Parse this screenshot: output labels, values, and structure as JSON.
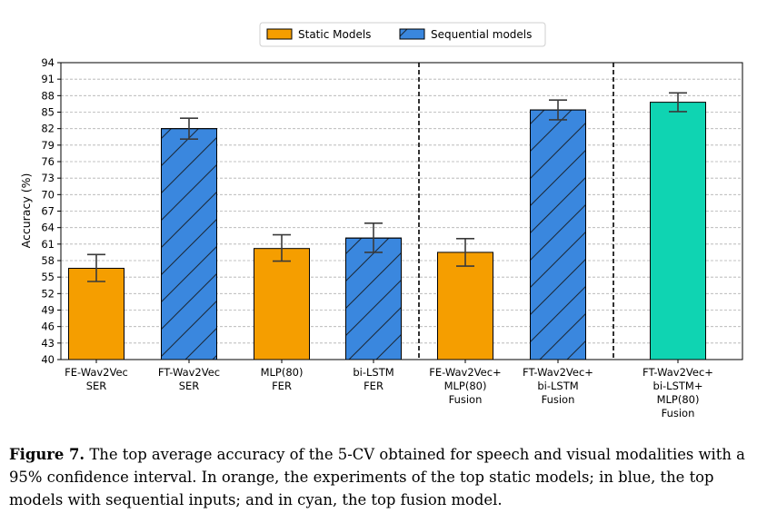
{
  "chart_data": {
    "type": "bar",
    "title": "",
    "xlabel": "",
    "ylabel": "Accuracy (%)",
    "ylim": [
      40,
      94
    ],
    "yticks": [
      40,
      43,
      46,
      49,
      52,
      55,
      58,
      61,
      64,
      67,
      70,
      73,
      76,
      79,
      82,
      85,
      88,
      91,
      94
    ],
    "grid": true,
    "legend_position": "top-center",
    "legend": [
      {
        "name": "Static Models",
        "color": "#f59e00",
        "hatch": false
      },
      {
        "name": "Sequential models",
        "color": "#3a87de",
        "hatch": true
      }
    ],
    "categories": [
      {
        "lines": [
          "FE-Wav2Vec",
          "SER"
        ],
        "value": 56.6,
        "err_low": 54.2,
        "err_high": 59.1,
        "group": "static",
        "color": "#f59e00"
      },
      {
        "lines": [
          "FT-Wav2Vec",
          "SER"
        ],
        "value": 82.0,
        "err_low": 80.1,
        "err_high": 83.9,
        "group": "sequential",
        "color": "#3a87de"
      },
      {
        "lines": [
          "MLP(80)",
          "FER"
        ],
        "value": 60.2,
        "err_low": 57.9,
        "err_high": 62.7,
        "group": "static",
        "color": "#f59e00"
      },
      {
        "lines": [
          "bi-LSTM",
          "FER"
        ],
        "value": 62.1,
        "err_low": 59.5,
        "err_high": 64.8,
        "group": "sequential",
        "color": "#3a87de"
      },
      {
        "lines": [
          "FE-Wav2Vec+",
          "MLP(80)",
          "Fusion"
        ],
        "value": 59.5,
        "err_low": 57.0,
        "err_high": 62.0,
        "group": "static",
        "color": "#f59e00"
      },
      {
        "lines": [
          "FT-Wav2Vec+",
          "bi-LSTM",
          "Fusion"
        ],
        "value": 85.4,
        "err_low": 83.6,
        "err_high": 87.2,
        "group": "sequential",
        "color": "#3a87de"
      },
      {
        "lines": [
          "FT-Wav2Vec+",
          "bi-LSTM+",
          "MLP(80)",
          "Fusion"
        ],
        "value": 86.8,
        "err_low": 85.1,
        "err_high": 88.5,
        "group": "fusion",
        "color": "#0fd4b2"
      }
    ],
    "separators_after": [
      3,
      5
    ]
  },
  "caption": {
    "label": "Figure 7.",
    "text": " The top average accuracy of the 5-CV obtained for speech and visual modalities with a 95% confidence interval. In orange, the experiments of the top static models; in blue, the top models with sequential inputs; and in cyan, the top fusion model."
  }
}
